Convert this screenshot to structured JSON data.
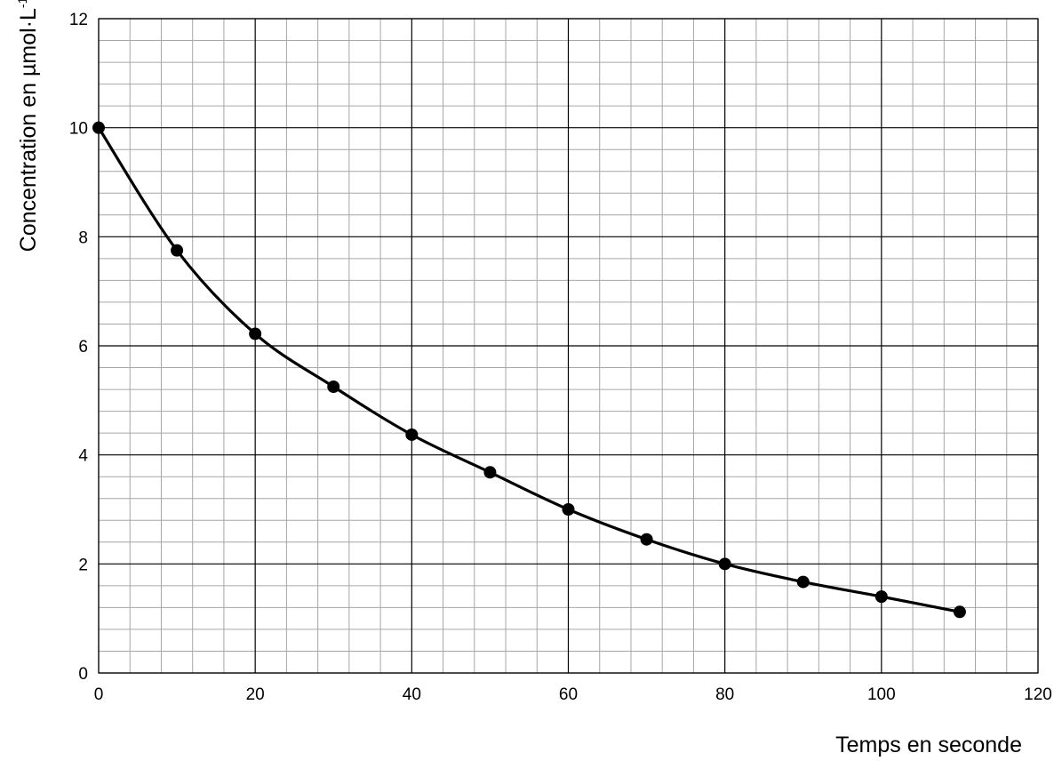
{
  "chart_data": {
    "type": "line",
    "title": "",
    "xlabel": "Temps en seconde",
    "ylabel": "Concentration en µmol·L",
    "ylabel_superscript": "-1",
    "xlim": [
      0,
      120
    ],
    "ylim": [
      0,
      12
    ],
    "x_ticks": [
      0,
      20,
      40,
      60,
      80,
      100,
      120
    ],
    "y_ticks": [
      0,
      2,
      4,
      6,
      8,
      10,
      12
    ],
    "x_major_grid_step": 20,
    "x_minor_grid_step": 4,
    "y_major_grid_step": 2,
    "y_minor_grid_step": 0.4,
    "grid": true,
    "legend": "none",
    "series": [
      {
        "x": [
          0,
          10,
          20,
          30,
          40,
          50,
          60,
          70,
          80,
          90,
          100,
          110
        ],
        "y": [
          10.0,
          7.75,
          6.22,
          5.25,
          4.37,
          3.68,
          3.0,
          2.45,
          2.0,
          1.67,
          1.4,
          1.12
        ],
        "color": "#000000",
        "marker": "circle",
        "smooth": true
      }
    ]
  }
}
